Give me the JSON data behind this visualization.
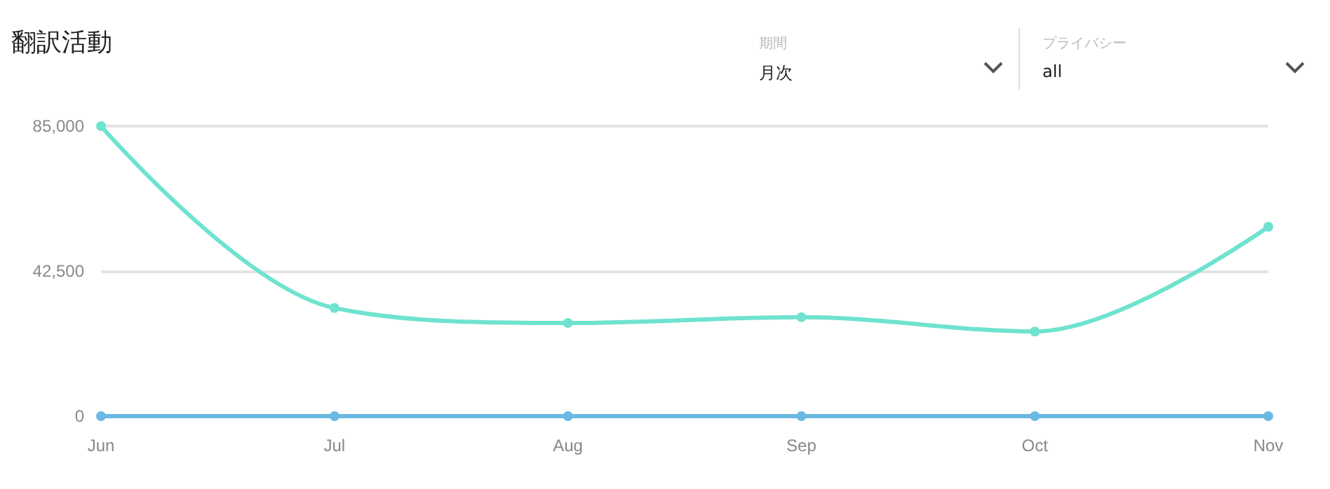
{
  "chart_data": {
    "type": "line",
    "title": "翻訳活動",
    "annotations": [
      "期間",
      "月次",
      "プライバシー",
      "all"
    ],
    "categories": [
      "Jun",
      "Jul",
      "Aug",
      "Sep",
      "Oct",
      "Nov"
    ],
    "series": [
      {
        "color": "#6ee3cf",
        "values": [
          85000,
          31700,
          27300,
          29000,
          24800,
          55500
        ]
      },
      {
        "color": "#6ab9e3",
        "values": [
          0,
          0,
          0,
          0,
          0,
          0
        ]
      }
    ],
    "ylim": [
      0,
      85000
    ],
    "yticks": [
      0,
      {
        "value": 42500,
        "label": "42,500"
      },
      {
        "value": 85000,
        "label": "85,000"
      }
    ],
    "grid": "y",
    "marker": "circle",
    "line_style": "solid"
  }
}
